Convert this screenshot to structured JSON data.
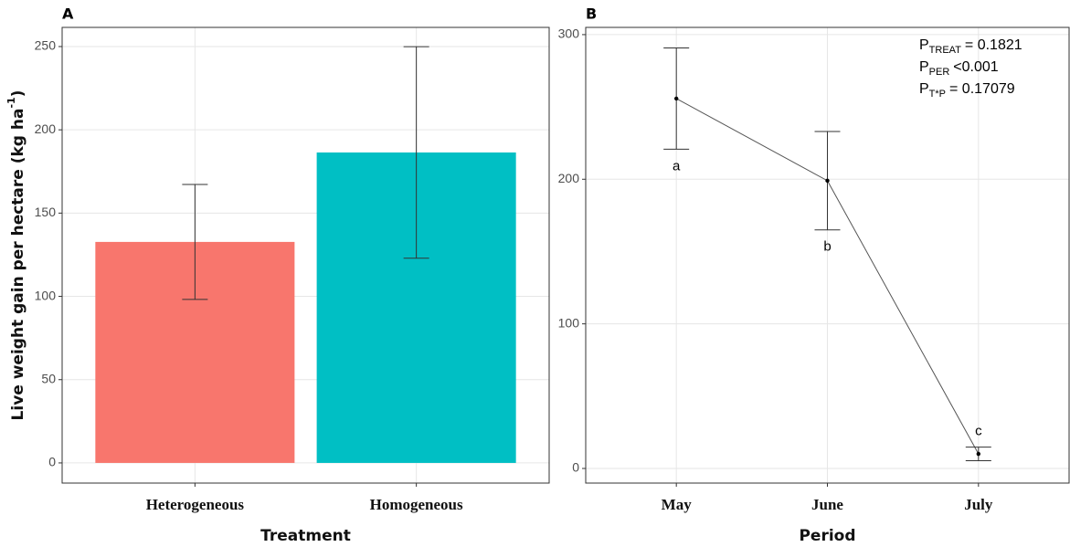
{
  "chart_data": [
    {
      "type": "bar",
      "panel": "A",
      "categories": [
        "Heterogeneous",
        "Homogeneous"
      ],
      "values": [
        132.7,
        186.4
      ],
      "errors": [
        34.5,
        63.5
      ],
      "colors": [
        "#F8766D",
        "#00BFC4"
      ],
      "x_label": "Treatment",
      "y_label": {
        "text": "Live weight gain per hectare (kg ha",
        "sup": "-1",
        "end": ")"
      },
      "ylim": [
        -12.1,
        261.5
      ],
      "yticks": [
        0,
        50,
        100,
        150,
        200,
        250
      ],
      "grid": true
    },
    {
      "type": "line",
      "panel": "B",
      "categories": [
        "May",
        "June",
        "July"
      ],
      "values": [
        255.8,
        199,
        10.1
      ],
      "errors": [
        35,
        34,
        4.7
      ],
      "point_labels": [
        "a",
        "b",
        "c"
      ],
      "color": "#555555",
      "x_label": "Period",
      "annotations": [
        {
          "p": "P",
          "sub": "TREAT",
          "text": "= 0.1821"
        },
        {
          "p": "P",
          "sub": "PER",
          "text": "<0.001"
        },
        {
          "p": "P",
          "sub": "T*P",
          "text": "= 0.17079"
        }
      ],
      "ylim": [
        -10.1,
        305
      ],
      "yticks": [
        0,
        100,
        200,
        300
      ],
      "grid": true
    }
  ]
}
